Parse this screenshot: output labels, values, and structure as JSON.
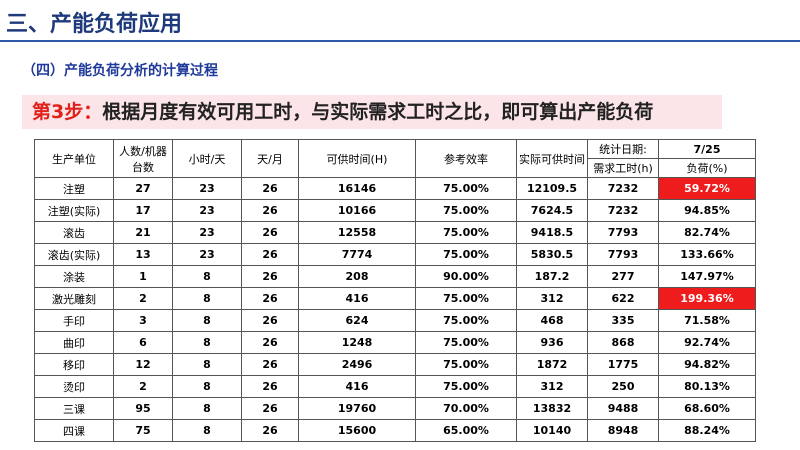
{
  "header": {
    "title": "三、产能负荷应用",
    "subtitle": "（四）产能负荷分析的计算过程"
  },
  "banner": {
    "step": "第3步：",
    "text": "根据月度有效可用工时，与实际需求工时之比，即可算出产能负荷"
  },
  "table": {
    "columns": [
      "生产单位",
      "人数/机器台数",
      "小时/天",
      "天/月",
      "可供时间(H)",
      "参考效率",
      "实际可供时间",
      "统计日期:",
      "7/25"
    ],
    "subcolumns": [
      "需求工时(h)",
      "负荷(%)"
    ],
    "rows": [
      [
        "注塑",
        "27",
        "23",
        "26",
        "16146",
        "75.00%",
        "12109.5",
        "7232",
        "59.72%"
      ],
      [
        "注塑(实际)",
        "17",
        "23",
        "26",
        "10166",
        "75.00%",
        "7624.5",
        "7232",
        "94.85%"
      ],
      [
        "滚齿",
        "21",
        "23",
        "26",
        "12558",
        "75.00%",
        "9418.5",
        "7793",
        "82.74%"
      ],
      [
        "滚齿(实际)",
        "13",
        "23",
        "26",
        "7774",
        "75.00%",
        "5830.5",
        "7793",
        "133.66%"
      ],
      [
        "涂装",
        "1",
        "8",
        "26",
        "208",
        "90.00%",
        "187.2",
        "277",
        "147.97%"
      ],
      [
        "激光雕刻",
        "2",
        "8",
        "26",
        "416",
        "75.00%",
        "312",
        "622",
        "199.36%"
      ],
      [
        "手印",
        "3",
        "8",
        "26",
        "624",
        "75.00%",
        "468",
        "335",
        "71.58%"
      ],
      [
        "曲印",
        "6",
        "8",
        "26",
        "1248",
        "75.00%",
        "936",
        "868",
        "92.74%"
      ],
      [
        "移印",
        "12",
        "8",
        "26",
        "2496",
        "75.00%",
        "1872",
        "1775",
        "94.82%"
      ],
      [
        "烫印",
        "2",
        "8",
        "26",
        "416",
        "75.00%",
        "312",
        "250",
        "80.13%"
      ],
      [
        "三课",
        "95",
        "8",
        "26",
        "19760",
        "70.00%",
        "13832",
        "9488",
        "68.60%"
      ],
      [
        "四课",
        "75",
        "8",
        "26",
        "15600",
        "65.00%",
        "10140",
        "8948",
        "88.24%"
      ]
    ]
  }
}
